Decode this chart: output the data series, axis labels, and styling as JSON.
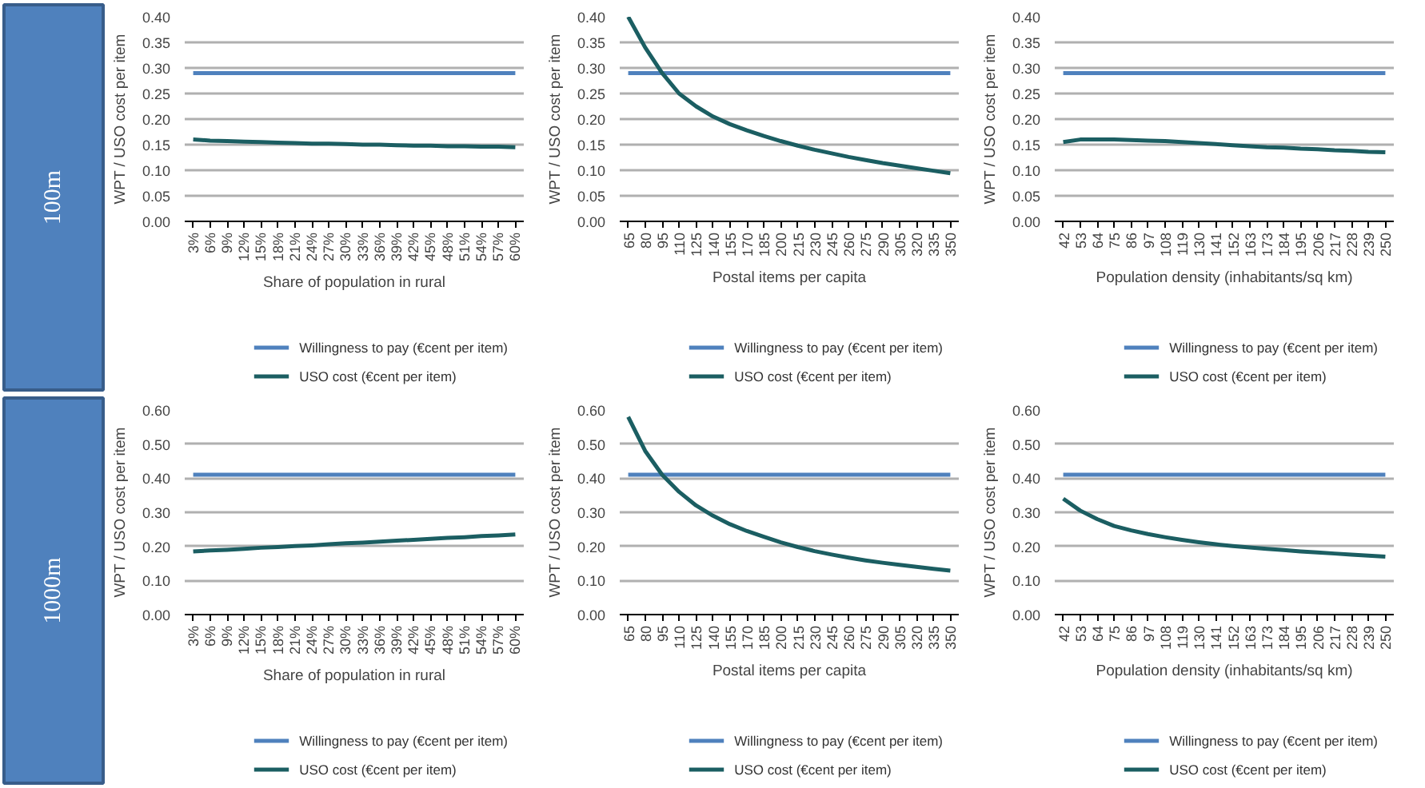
{
  "chart_data": [
    {
      "type": "line",
      "annotations": [
        "100m"
      ],
      "categories": [
        "3%",
        "6%",
        "9%",
        "12%",
        "15%",
        "18%",
        "21%",
        "24%",
        "27%",
        "30%",
        "33%",
        "36%",
        "39%",
        "42%",
        "45%",
        "48%",
        "51%",
        "54%",
        "57%",
        "60%"
      ],
      "xlabel": "Share of population in rural",
      "ylabel": "WPT / USO cost per item",
      "ylim": [
        0,
        0.4
      ],
      "yticks": [
        {
          "value": 0,
          "label": "0.00"
        },
        {
          "value": 0.05,
          "label": "0.05"
        },
        {
          "value": 0.1,
          "label": "0.10"
        },
        {
          "value": 0.15,
          "label": "0.15"
        },
        {
          "value": 0.2,
          "label": "0.20"
        },
        {
          "value": 0.25,
          "label": "0.25"
        },
        {
          "value": 0.3,
          "label": "0.30"
        },
        {
          "value": 0.35,
          "label": "0.35"
        },
        {
          "value": 0.4,
          "label": "0.40"
        }
      ],
      "grid": "y",
      "legend": "bottom",
      "series": [
        {
          "name": "Willingness to pay (€cent per item)",
          "color": "#4f81bd",
          "values": [
            0.29,
            0.29,
            0.29,
            0.29,
            0.29,
            0.29,
            0.29,
            0.29,
            0.29,
            0.29,
            0.29,
            0.29,
            0.29,
            0.29,
            0.29,
            0.29,
            0.29,
            0.29,
            0.29,
            0.29
          ]
        },
        {
          "name": "USO cost (€cent per item)",
          "color": "#1b5e62",
          "values": [
            0.16,
            0.158,
            0.157,
            0.156,
            0.155,
            0.154,
            0.153,
            0.152,
            0.152,
            0.151,
            0.15,
            0.15,
            0.149,
            0.148,
            0.148,
            0.147,
            0.147,
            0.146,
            0.146,
            0.145
          ]
        }
      ]
    },
    {
      "type": "line",
      "categories": [
        "65",
        "80",
        "95",
        "110",
        "125",
        "140",
        "155",
        "170",
        "185",
        "200",
        "215",
        "230",
        "245",
        "260",
        "275",
        "290",
        "305",
        "320",
        "335",
        "350"
      ],
      "xlabel": "Postal items per capita",
      "ylabel": "WPT / USO cost per item",
      "ylim": [
        0,
        0.4
      ],
      "yticks": [
        {
          "value": 0,
          "label": "0.00"
        },
        {
          "value": 0.05,
          "label": "0.05"
        },
        {
          "value": 0.1,
          "label": "0.10"
        },
        {
          "value": 0.15,
          "label": "0.15"
        },
        {
          "value": 0.2,
          "label": "0.20"
        },
        {
          "value": 0.25,
          "label": "0.25"
        },
        {
          "value": 0.3,
          "label": "0.30"
        },
        {
          "value": 0.35,
          "label": "0.35"
        },
        {
          "value": 0.4,
          "label": "0.40"
        }
      ],
      "grid": "y",
      "legend": "bottom",
      "series": [
        {
          "name": "Willingness to pay (€cent per item)",
          "color": "#4f81bd",
          "values": [
            0.29,
            0.29,
            0.29,
            0.29,
            0.29,
            0.29,
            0.29,
            0.29,
            0.29,
            0.29,
            0.29,
            0.29,
            0.29,
            0.29,
            0.29,
            0.29,
            0.29,
            0.29,
            0.29,
            0.29
          ]
        },
        {
          "name": "USO cost (€cent per item)",
          "color": "#1b5e62",
          "values": [
            0.4,
            0.34,
            0.29,
            0.25,
            0.225,
            0.205,
            0.19,
            0.178,
            0.167,
            0.157,
            0.148,
            0.14,
            0.133,
            0.126,
            0.12,
            0.114,
            0.109,
            0.104,
            0.099,
            0.094
          ]
        }
      ]
    },
    {
      "type": "line",
      "categories": [
        "42",
        "53",
        "64",
        "75",
        "86",
        "97",
        "108",
        "119",
        "130",
        "141",
        "152",
        "163",
        "173",
        "184",
        "195",
        "206",
        "217",
        "228",
        "239",
        "250"
      ],
      "xlabel": "Population density (inhabitants/sq km)",
      "ylabel": "WPT / USO cost per item",
      "ylim": [
        0,
        0.4
      ],
      "yticks": [
        {
          "value": 0,
          "label": "0.00"
        },
        {
          "value": 0.05,
          "label": "0.05"
        },
        {
          "value": 0.1,
          "label": "0.10"
        },
        {
          "value": 0.15,
          "label": "0.15"
        },
        {
          "value": 0.2,
          "label": "0.20"
        },
        {
          "value": 0.25,
          "label": "0.25"
        },
        {
          "value": 0.3,
          "label": "0.30"
        },
        {
          "value": 0.35,
          "label": "0.35"
        },
        {
          "value": 0.4,
          "label": "0.40"
        }
      ],
      "grid": "y",
      "legend": "bottom",
      "series": [
        {
          "name": "Willingness to pay (€cent per item)",
          "color": "#4f81bd",
          "values": [
            0.29,
            0.29,
            0.29,
            0.29,
            0.29,
            0.29,
            0.29,
            0.29,
            0.29,
            0.29,
            0.29,
            0.29,
            0.29,
            0.29,
            0.29,
            0.29,
            0.29,
            0.29,
            0.29,
            0.29
          ]
        },
        {
          "name": "USO cost (€cent per item)",
          "color": "#1b5e62",
          "values": [
            0.155,
            0.16,
            0.16,
            0.16,
            0.159,
            0.158,
            0.157,
            0.155,
            0.153,
            0.151,
            0.149,
            0.147,
            0.145,
            0.144,
            0.142,
            0.141,
            0.139,
            0.138,
            0.136,
            0.135
          ]
        }
      ]
    },
    {
      "type": "line",
      "annotations": [
        "1000m"
      ],
      "categories": [
        "3%",
        "6%",
        "9%",
        "12%",
        "15%",
        "18%",
        "21%",
        "24%",
        "27%",
        "30%",
        "33%",
        "36%",
        "39%",
        "42%",
        "45%",
        "48%",
        "51%",
        "54%",
        "57%",
        "60%"
      ],
      "xlabel": "Share of population in rural",
      "ylabel": "WPT / USO cost per item",
      "ylim": [
        0,
        0.6
      ],
      "yticks": [
        {
          "value": 0,
          "label": "0.00"
        },
        {
          "value": 0.1,
          "label": "0.10"
        },
        {
          "value": 0.2,
          "label": "0.20"
        },
        {
          "value": 0.3,
          "label": "0.30"
        },
        {
          "value": 0.4,
          "label": "0.40"
        },
        {
          "value": 0.5,
          "label": "0.50"
        },
        {
          "value": 0.6,
          "label": "0.60"
        }
      ],
      "grid": "y",
      "legend": "bottom",
      "series": [
        {
          "name": "Willingness to pay (€cent per item)",
          "color": "#4f81bd",
          "values": [
            0.41,
            0.41,
            0.41,
            0.41,
            0.41,
            0.41,
            0.41,
            0.41,
            0.41,
            0.41,
            0.41,
            0.41,
            0.41,
            0.41,
            0.41,
            0.41,
            0.41,
            0.41,
            0.41,
            0.41
          ]
        },
        {
          "name": "USO cost (€cent per item)",
          "color": "#1b5e62",
          "values": [
            0.185,
            0.188,
            0.19,
            0.193,
            0.196,
            0.198,
            0.201,
            0.203,
            0.206,
            0.209,
            0.211,
            0.214,
            0.217,
            0.219,
            0.222,
            0.225,
            0.227,
            0.23,
            0.232,
            0.235
          ]
        }
      ]
    },
    {
      "type": "line",
      "categories": [
        "65",
        "80",
        "95",
        "110",
        "125",
        "140",
        "155",
        "170",
        "185",
        "200",
        "215",
        "230",
        "245",
        "260",
        "275",
        "290",
        "305",
        "320",
        "335",
        "350"
      ],
      "xlabel": "Postal items per capita",
      "ylabel": "WPT / USO cost per item",
      "ylim": [
        0,
        0.6
      ],
      "yticks": [
        {
          "value": 0,
          "label": "0.00"
        },
        {
          "value": 0.1,
          "label": "0.10"
        },
        {
          "value": 0.2,
          "label": "0.20"
        },
        {
          "value": 0.3,
          "label": "0.30"
        },
        {
          "value": 0.4,
          "label": "0.40"
        },
        {
          "value": 0.5,
          "label": "0.50"
        },
        {
          "value": 0.6,
          "label": "0.60"
        }
      ],
      "grid": "y",
      "legend": "bottom",
      "series": [
        {
          "name": "Willingness to pay (€cent per item)",
          "color": "#4f81bd",
          "values": [
            0.41,
            0.41,
            0.41,
            0.41,
            0.41,
            0.41,
            0.41,
            0.41,
            0.41,
            0.41,
            0.41,
            0.41,
            0.41,
            0.41,
            0.41,
            0.41,
            0.41,
            0.41,
            0.41,
            0.41
          ]
        },
        {
          "name": "USO cost (€cent per item)",
          "color": "#1b5e62",
          "values": [
            0.58,
            0.48,
            0.41,
            0.36,
            0.32,
            0.29,
            0.265,
            0.245,
            0.228,
            0.212,
            0.198,
            0.186,
            0.176,
            0.167,
            0.159,
            0.152,
            0.146,
            0.14,
            0.134,
            0.129
          ]
        }
      ]
    },
    {
      "type": "line",
      "categories": [
        "42",
        "53",
        "64",
        "75",
        "86",
        "97",
        "108",
        "119",
        "130",
        "141",
        "152",
        "163",
        "173",
        "184",
        "195",
        "206",
        "217",
        "228",
        "239",
        "250"
      ],
      "xlabel": "Population density (inhabitants/sq km)",
      "ylabel": "WPT / USO cost per item",
      "ylim": [
        0,
        0.6
      ],
      "yticks": [
        {
          "value": 0,
          "label": "0.00"
        },
        {
          "value": 0.1,
          "label": "0.10"
        },
        {
          "value": 0.2,
          "label": "0.20"
        },
        {
          "value": 0.3,
          "label": "0.30"
        },
        {
          "value": 0.4,
          "label": "0.40"
        },
        {
          "value": 0.5,
          "label": "0.50"
        },
        {
          "value": 0.6,
          "label": "0.60"
        }
      ],
      "grid": "y",
      "legend": "bottom",
      "series": [
        {
          "name": "Willingness to pay (€cent per item)",
          "color": "#4f81bd",
          "values": [
            0.41,
            0.41,
            0.41,
            0.41,
            0.41,
            0.41,
            0.41,
            0.41,
            0.41,
            0.41,
            0.41,
            0.41,
            0.41,
            0.41,
            0.41,
            0.41,
            0.41,
            0.41,
            0.41,
            0.41
          ]
        },
        {
          "name": "USO cost (€cent per item)",
          "color": "#1b5e62",
          "values": [
            0.34,
            0.305,
            0.28,
            0.26,
            0.247,
            0.236,
            0.227,
            0.219,
            0.212,
            0.206,
            0.201,
            0.197,
            0.193,
            0.189,
            0.185,
            0.182,
            0.179,
            0.176,
            0.173,
            0.17
          ]
        }
      ]
    }
  ]
}
